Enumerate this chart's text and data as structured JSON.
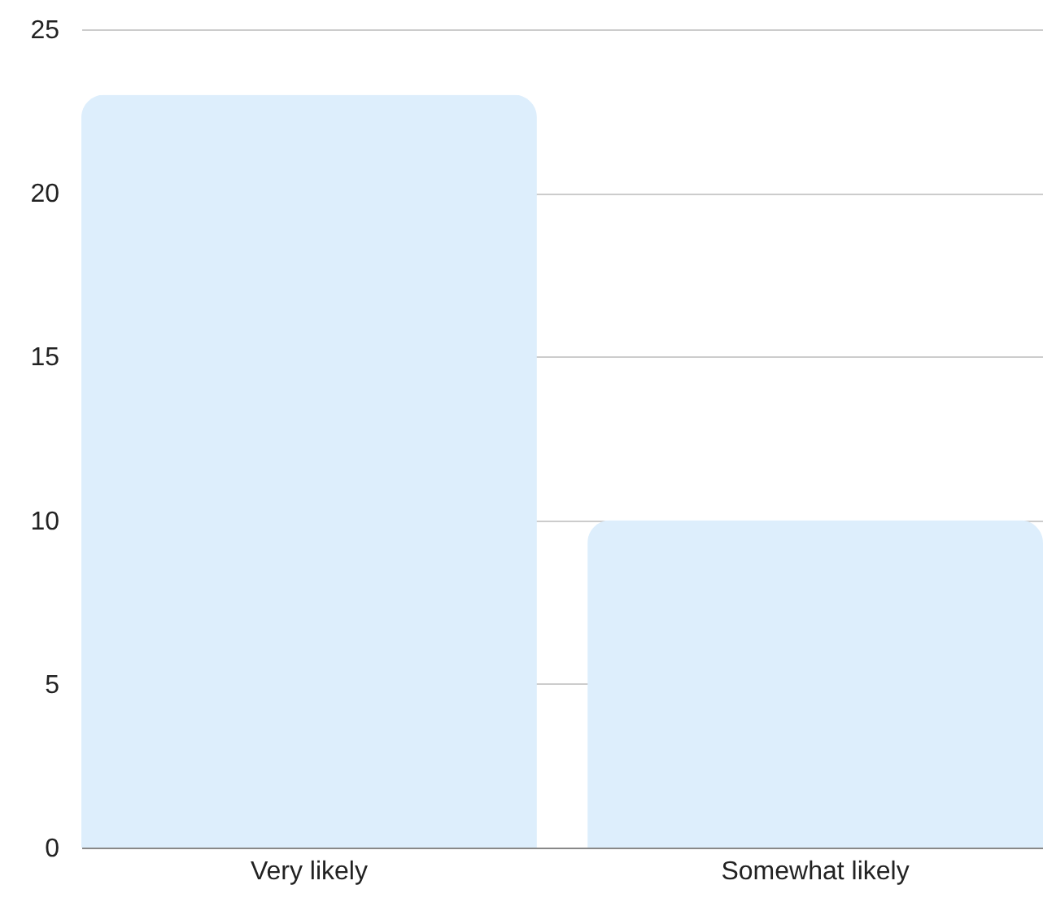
{
  "chart_data": {
    "type": "bar",
    "categories": [
      "Very likely",
      "Somewhat likely"
    ],
    "values": [
      23,
      10
    ],
    "color": "#ddeefc",
    "ylim": [
      0,
      25
    ],
    "yticks": [
      0,
      5,
      10,
      15,
      20,
      25
    ],
    "grid": "y"
  }
}
